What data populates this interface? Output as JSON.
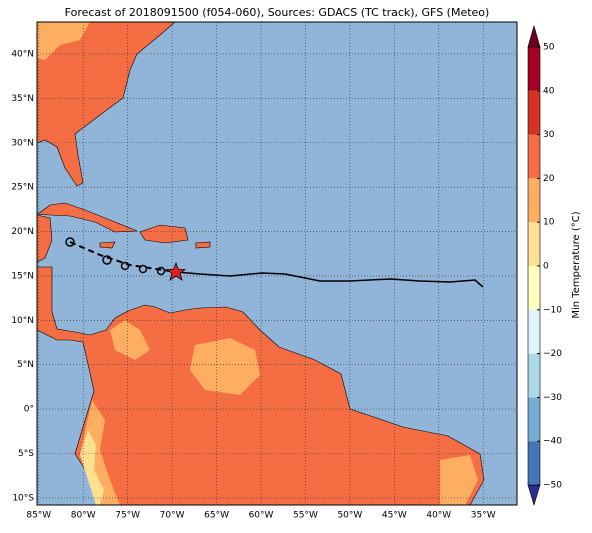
{
  "title": "Forecast of 2018091500 (f054-060), Sources: GDACS (TC track), GFS (Meteo)",
  "map": {
    "lonlim": [
      -85.2,
      -31.2
    ],
    "latlim": [
      -10.8,
      43.6
    ],
    "lat_ticks": [
      {
        "value": 40,
        "label": "40°N"
      },
      {
        "value": 35,
        "label": "35°N"
      },
      {
        "value": 30,
        "label": "30°N"
      },
      {
        "value": 25,
        "label": "25°N"
      },
      {
        "value": 20,
        "label": "20°N"
      },
      {
        "value": 15,
        "label": "15°N"
      },
      {
        "value": 10,
        "label": "10°N"
      },
      {
        "value": 5,
        "label": "5°N"
      },
      {
        "value": 0,
        "label": "0°"
      },
      {
        "value": -5,
        "label": "5°S"
      },
      {
        "value": -10,
        "label": "10°S"
      }
    ],
    "lon_ticks": [
      {
        "value": -85,
        "label": "85°W"
      },
      {
        "value": -80,
        "label": "80°W"
      },
      {
        "value": -75,
        "label": "75°W"
      },
      {
        "value": -70,
        "label": "70°W"
      },
      {
        "value": -65,
        "label": "65°W"
      },
      {
        "value": -60,
        "label": "60°W"
      },
      {
        "value": -55,
        "label": "55°W"
      },
      {
        "value": -50,
        "label": "50°W"
      },
      {
        "value": -45,
        "label": "45°W"
      },
      {
        "value": -40,
        "label": "40°W"
      },
      {
        "value": -35,
        "label": "35°W"
      }
    ]
  },
  "colorbar": {
    "label": "Min Temperature (°C)",
    "lim": [
      -50,
      50
    ],
    "ticks": [
      50,
      40,
      30,
      20,
      10,
      0,
      {
        "value": -10,
        "label": "−10"
      },
      {
        "value": -20,
        "label": "−20"
      },
      {
        "value": -30,
        "label": "−30"
      },
      {
        "value": -40,
        "label": "−40"
      },
      {
        "value": -50,
        "label": "−50"
      }
    ],
    "colors": [
      "#2b2b8f",
      "#4575b4",
      "#74add1",
      "#abd9e9",
      "#e0f3f8",
      "#ffffbf",
      "#fee090",
      "#fdae61",
      "#f46d43",
      "#d73027",
      "#a50026",
      "#6b0020"
    ]
  }
}
